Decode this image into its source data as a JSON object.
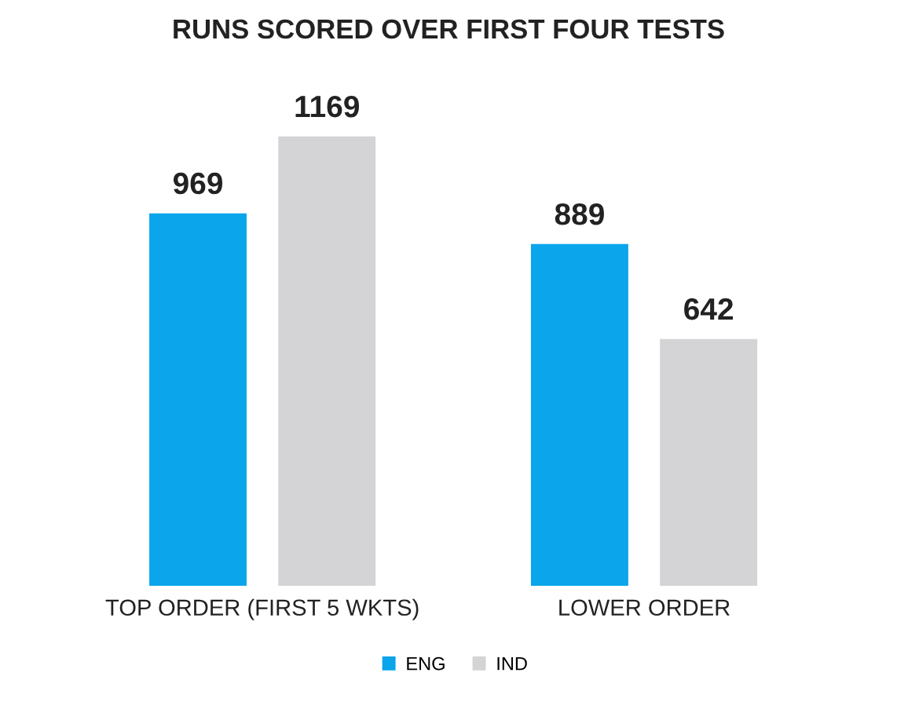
{
  "chart_data": {
    "type": "bar",
    "title": "RUNS SCORED OVER FIRST FOUR TESTS",
    "categories": [
      "TOP ORDER (FIRST 5 WKTS)",
      "LOWER ORDER"
    ],
    "series": [
      {
        "name": "ENG",
        "color": "#0aa5ea",
        "values": [
          969,
          889
        ]
      },
      {
        "name": "IND",
        "color": "#d4d4d6",
        "values": [
          1169,
          642
        ]
      }
    ],
    "data_labels": true,
    "legend": "bottom",
    "grid": false
  }
}
